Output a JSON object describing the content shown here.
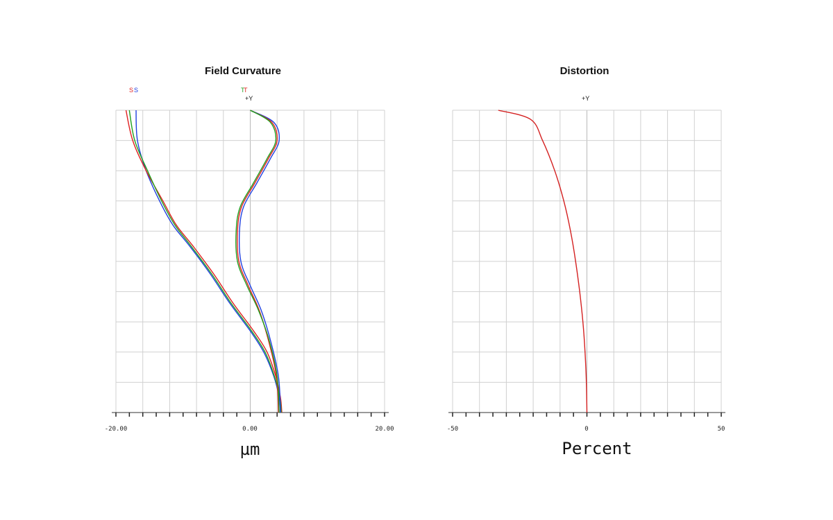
{
  "chart_data": [
    {
      "type": "line",
      "title": "Field Curvature",
      "xlabel": "µm",
      "ylabel": "",
      "xlim": [
        -20,
        20
      ],
      "ylim": [
        0,
        1
      ],
      "xtick_labels": [
        "-20.00",
        "0.00",
        "20.00"
      ],
      "grid": true,
      "legend": {
        "sagittal": [
          {
            "text": "S",
            "color": "#e02020"
          },
          {
            "text": "S",
            "color": "#2040e0"
          }
        ],
        "tangential": [
          {
            "text": "T",
            "color": "#20a020"
          },
          {
            "text": "T",
            "color": "#e02020"
          }
        ],
        "field_label": "+Y"
      },
      "series": [
        {
          "color": "#2040e0",
          "points": [
            [
              -17.0,
              1.0
            ],
            [
              -16.8,
              0.9
            ],
            [
              -15.5,
              0.8
            ],
            [
              -13.5,
              0.7
            ],
            [
              -11.5,
              0.62
            ],
            [
              -9.0,
              0.55
            ],
            [
              -6.0,
              0.46
            ],
            [
              -3.0,
              0.36
            ],
            [
              0.0,
              0.27
            ],
            [
              2.0,
              0.2
            ],
            [
              3.5,
              0.12
            ],
            [
              4.3,
              0.05
            ],
            [
              4.5,
              0.0
            ]
          ]
        },
        {
          "color": "#e02020",
          "points": [
            [
              -18.5,
              1.0
            ],
            [
              -17.5,
              0.9
            ],
            [
              -15.5,
              0.8
            ],
            [
              -13.0,
              0.7
            ],
            [
              -11.0,
              0.62
            ],
            [
              -8.5,
              0.55
            ],
            [
              -5.5,
              0.46
            ],
            [
              -2.5,
              0.36
            ],
            [
              0.5,
              0.27
            ],
            [
              2.5,
              0.2
            ],
            [
              3.8,
              0.12
            ],
            [
              4.5,
              0.05
            ],
            [
              4.7,
              0.0
            ]
          ]
        },
        {
          "color": "#20a020",
          "points": [
            [
              -18.0,
              1.0
            ],
            [
              -17.2,
              0.9
            ],
            [
              -15.3,
              0.8
            ],
            [
              -13.2,
              0.7
            ],
            [
              -11.2,
              0.62
            ],
            [
              -8.8,
              0.55
            ],
            [
              -5.8,
              0.46
            ],
            [
              -2.8,
              0.36
            ],
            [
              0.2,
              0.27
            ],
            [
              2.2,
              0.2
            ],
            [
              3.6,
              0.12
            ],
            [
              4.4,
              0.05
            ],
            [
              4.6,
              0.0
            ]
          ]
        },
        {
          "color": "#2040e0",
          "points": [
            [
              0.0,
              1.0
            ],
            [
              3.5,
              0.96
            ],
            [
              4.3,
              0.9
            ],
            [
              3.0,
              0.84
            ],
            [
              1.0,
              0.76
            ],
            [
              -1.0,
              0.68
            ],
            [
              -1.6,
              0.6
            ],
            [
              -1.4,
              0.5
            ],
            [
              0.0,
              0.42
            ],
            [
              1.6,
              0.34
            ],
            [
              3.0,
              0.24
            ],
            [
              4.2,
              0.12
            ],
            [
              4.5,
              0.0
            ]
          ]
        },
        {
          "color": "#e02020",
          "points": [
            [
              0.0,
              1.0
            ],
            [
              3.2,
              0.96
            ],
            [
              4.0,
              0.9
            ],
            [
              2.7,
              0.84
            ],
            [
              0.7,
              0.76
            ],
            [
              -1.3,
              0.68
            ],
            [
              -1.9,
              0.6
            ],
            [
              -1.7,
              0.5
            ],
            [
              -0.3,
              0.42
            ],
            [
              1.3,
              0.34
            ],
            [
              2.7,
              0.24
            ],
            [
              3.9,
              0.12
            ],
            [
              4.2,
              0.0
            ]
          ]
        },
        {
          "color": "#20a020",
          "points": [
            [
              0.0,
              1.0
            ],
            [
              3.0,
              0.96
            ],
            [
              3.8,
              0.9
            ],
            [
              2.5,
              0.84
            ],
            [
              0.5,
              0.76
            ],
            [
              -1.5,
              0.68
            ],
            [
              -2.1,
              0.6
            ],
            [
              -1.9,
              0.5
            ],
            [
              -0.5,
              0.42
            ],
            [
              1.2,
              0.34
            ],
            [
              2.8,
              0.24
            ],
            [
              4.0,
              0.12
            ],
            [
              4.3,
              0.0
            ]
          ]
        }
      ]
    },
    {
      "type": "line",
      "title": "Distortion",
      "xlabel": "Percent",
      "ylabel": "",
      "xlim": [
        -50,
        50
      ],
      "ylim": [
        0,
        1
      ],
      "xtick_labels": [
        "-50",
        "0",
        "50"
      ],
      "grid": true,
      "legend": {
        "field_label": "+Y"
      },
      "series": [
        {
          "color": "#d42020",
          "points": [
            [
              0.0,
              0.0
            ],
            [
              -0.2,
              0.1
            ],
            [
              -0.7,
              0.2
            ],
            [
              -1.5,
              0.3
            ],
            [
              -2.7,
              0.4
            ],
            [
              -4.2,
              0.5
            ],
            [
              -6.1,
              0.6
            ],
            [
              -8.6,
              0.7
            ],
            [
              -12.0,
              0.8
            ],
            [
              -16.5,
              0.9
            ],
            [
              -21.0,
              0.97
            ],
            [
              -33.0,
              1.0
            ]
          ]
        }
      ]
    }
  ]
}
